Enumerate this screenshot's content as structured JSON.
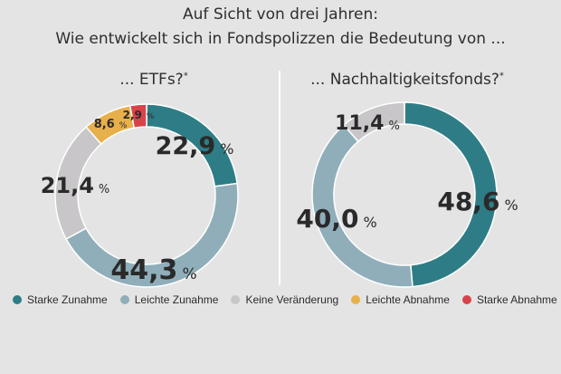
{
  "title_line1": "Auf Sicht von drei Jahren:",
  "title_line2": "Wie entwickelt sich in Fondspolizzen die Bedeutung von ...",
  "colors": {
    "starke_zunahme": "#2e7d86",
    "leichte_zunahme": "#8faeba",
    "keine_veraenderung": "#c8c6c8",
    "leichte_abnahme": "#e8b04a",
    "starke_abnahme": "#d8434a"
  },
  "legend": [
    {
      "label": "Starke Zunahme",
      "color": "#2e7d86"
    },
    {
      "label": "Leichte Zunahme",
      "color": "#8faeba"
    },
    {
      "label": "Keine Veränderung",
      "color": "#c8c6c8"
    },
    {
      "label": "Leichte Abnahme",
      "color": "#e8b04a"
    },
    {
      "label": "Starke Abnahme",
      "color": "#d8434a"
    }
  ],
  "chart_data": [
    {
      "type": "pie",
      "subtitle": "... ETFs?",
      "subtitle_mark": "*",
      "categories": [
        "Starke Zunahme",
        "Leichte Zunahme",
        "Keine Veränderung",
        "Leichte Abnahme",
        "Starke Abnahme"
      ],
      "values": [
        22.9,
        44.3,
        21.4,
        8.6,
        2.9
      ],
      "value_labels": [
        "22,9",
        "44,3",
        "21,4",
        "8,6",
        "2,9"
      ],
      "unit": "%"
    },
    {
      "type": "pie",
      "subtitle": "... Nachhaltigkeitsfonds?",
      "subtitle_mark": "*",
      "categories": [
        "Starke Zunahme",
        "Leichte Zunahme",
        "Keine Veränderung"
      ],
      "values": [
        48.6,
        40.0,
        11.4
      ],
      "value_labels": [
        "48,6",
        "40,0",
        "11,4"
      ],
      "unit": "%"
    }
  ]
}
